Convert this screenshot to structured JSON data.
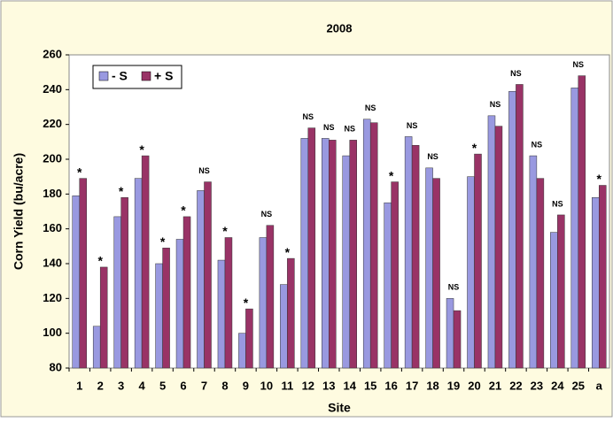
{
  "chart_data": {
    "type": "bar",
    "title": "2008",
    "x_label": "Site",
    "y_label": "Corn Yield (bu/acre)",
    "categories": [
      "1",
      "2",
      "3",
      "4",
      "5",
      "6",
      "7",
      "8",
      "9",
      "10",
      "11",
      "12",
      "13",
      "14",
      "15",
      "16",
      "17",
      "18",
      "19",
      "20",
      "21",
      "22",
      "23",
      "24",
      "25",
      "a"
    ],
    "series": [
      {
        "name": "- S",
        "color": "#9999e0",
        "values": [
          179,
          104,
          167,
          189,
          140,
          154,
          182,
          142,
          100,
          155,
          128,
          212,
          212,
          202,
          223,
          175,
          213,
          195,
          120,
          190,
          225,
          239,
          202,
          158,
          241,
          178
        ]
      },
      {
        "name": "+ S",
        "color": "#993366",
        "values": [
          189,
          138,
          178,
          202,
          149,
          167,
          187,
          155,
          114,
          162,
          143,
          218,
          211,
          211,
          221,
          187,
          208,
          189,
          113,
          203,
          219,
          243,
          189,
          168,
          248,
          185
        ]
      }
    ],
    "annotations": [
      "*",
      "*",
      "*",
      "*",
      "*",
      "*",
      "NS",
      "*",
      "*",
      "NS",
      "*",
      "NS",
      "NS",
      "NS",
      "NS",
      "*",
      "NS",
      "NS",
      "NS",
      "*",
      "NS",
      "NS",
      "NS",
      "NS",
      "NS",
      "*"
    ],
    "ylim": [
      80,
      260
    ],
    "yticks": [
      80,
      100,
      120,
      140,
      160,
      180,
      200,
      220,
      240,
      260
    ],
    "grid": false,
    "legend": "upper left"
  }
}
